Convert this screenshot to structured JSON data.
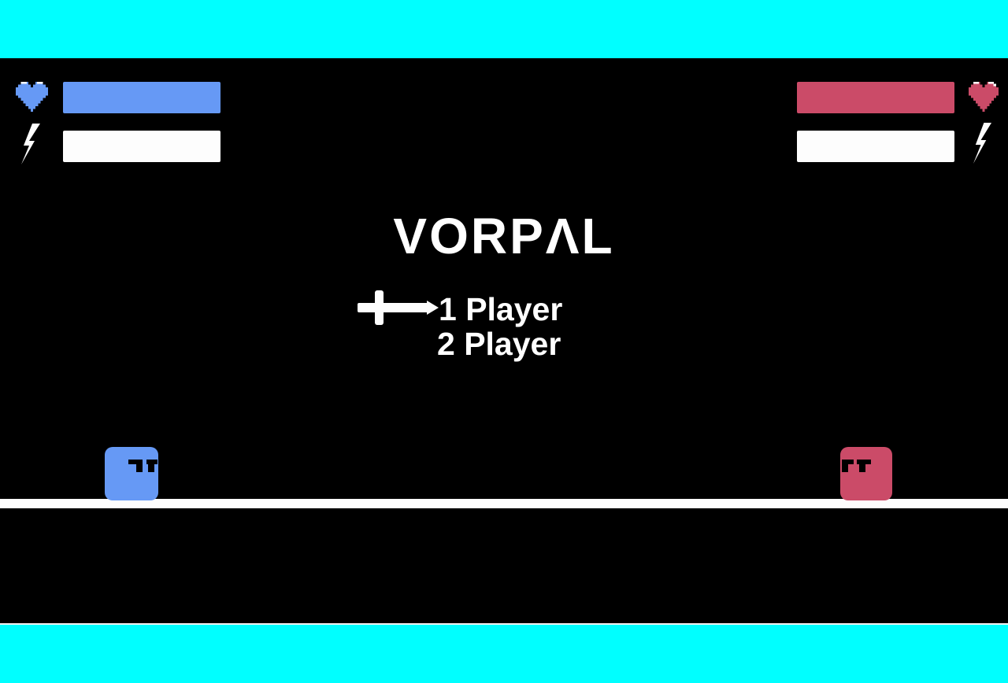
{
  "window": {
    "title": "VORPAL"
  },
  "colors": {
    "letterbox": "#00ffff",
    "bg": "#000000",
    "p1": "#6699f5",
    "p2": "#cb4b68",
    "fg": "#ffffff"
  },
  "hud": {
    "p1": {
      "heart_icon": "pixel-heart",
      "health_fill": "100%",
      "bolt_icon": "lightning-bolt",
      "energy_fill": "100%"
    },
    "p2": {
      "heart_icon": "pixel-heart",
      "health_fill": "100%",
      "bolt_icon": "lightning-bolt",
      "energy_fill": "100%"
    }
  },
  "title": {
    "text": "VORPΛL"
  },
  "menu": {
    "cursor_icon": "sword-cursor",
    "selected_index": 0,
    "items": [
      {
        "label": "1 Player"
      },
      {
        "label": "2 Player"
      }
    ]
  },
  "stage": {
    "p1_sprite": "blue-square-fighter",
    "p2_sprite": "red-square-fighter"
  }
}
